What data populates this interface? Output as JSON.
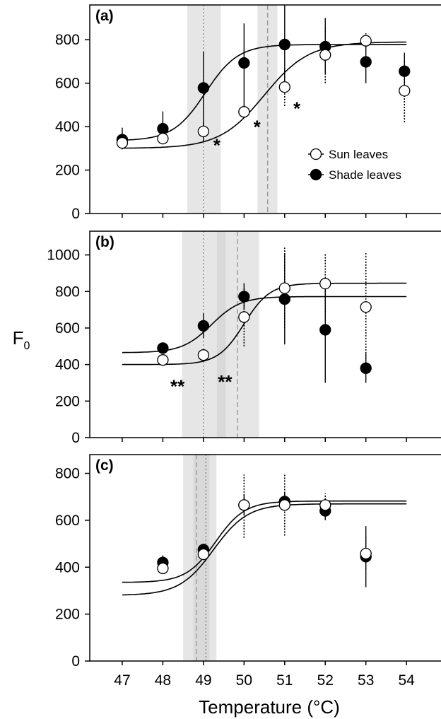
{
  "chart_data": {
    "type": "scatter",
    "xlabel": "Temperature (°C)",
    "ylabel": "F",
    "ylabel_subscript": "0",
    "x_ticks": [
      47,
      48,
      49,
      50,
      51,
      52,
      53,
      54
    ],
    "xlim": [
      46.2,
      54.85
    ],
    "legend": {
      "placement": "right",
      "entries": [
        {
          "name": "Sun leaves",
          "marker": "open-circle"
        },
        {
          "name": "Shade leaves",
          "marker": "filled-circle"
        }
      ]
    },
    "panels": [
      {
        "label": "(a)",
        "ylim": [
          0,
          960
        ],
        "y_ticks": [
          0,
          200,
          400,
          600,
          800
        ],
        "show_legend": true,
        "bands": [
          {
            "x0": 48.6,
            "x1": 49.43,
            "shade": "#e6e6e6"
          },
          {
            "x0": 50.33,
            "x1": 50.82,
            "shade": "#e6e6e6"
          }
        ],
        "vlines": [
          {
            "x": 49.0,
            "style": "dotted"
          },
          {
            "x": 50.58,
            "style": "dashed"
          }
        ],
        "series": [
          {
            "name": "Sun leaves",
            "marker": "open",
            "points": [
              {
                "x": 47,
                "y": 325,
                "lo": 300,
                "hi": 350,
                "err": "solid"
              },
              {
                "x": 48,
                "y": 345,
                "lo": 318,
                "hi": 375,
                "err": "solid"
              },
              {
                "x": 49,
                "y": 378,
                "lo": 350,
                "hi": 420,
                "err": "solid"
              },
              {
                "x": 50,
                "y": 468,
                "lo": 440,
                "hi": 500,
                "err": "solid"
              },
              {
                "x": 51,
                "y": 582,
                "lo": 495,
                "hi": 670,
                "err": "dotted"
              },
              {
                "x": 52,
                "y": 730,
                "lo": 600,
                "hi": 860,
                "err": "dotted"
              },
              {
                "x": 53,
                "y": 795,
                "lo": 760,
                "hi": 830,
                "err": "dotted"
              },
              {
                "x": 53.95,
                "y": 565,
                "lo": 420,
                "hi": 700,
                "err": "dotted"
              }
            ],
            "curve": {
              "min": 300,
              "max": 790,
              "t50": 50.5,
              "slope": 0.55
            }
          },
          {
            "name": "Shade leaves",
            "marker": "filled",
            "points": [
              {
                "x": 47,
                "y": 340,
                "lo": 295,
                "hi": 395,
                "err": "solid"
              },
              {
                "x": 48,
                "y": 390,
                "lo": 320,
                "hi": 470,
                "err": "solid"
              },
              {
                "x": 49,
                "y": 578,
                "lo": 330,
                "hi": 745,
                "err": "solid"
              },
              {
                "x": 50,
                "y": 693,
                "lo": 475,
                "hi": 875,
                "err": "solid"
              },
              {
                "x": 51,
                "y": 778,
                "lo": 560,
                "hi": 965,
                "err": "solid"
              },
              {
                "x": 52,
                "y": 768,
                "lo": 640,
                "hi": 900,
                "err": "solid"
              },
              {
                "x": 53,
                "y": 698,
                "lo": 600,
                "hi": 800,
                "err": "solid"
              },
              {
                "x": 53.95,
                "y": 655,
                "lo": 570,
                "hi": 740,
                "err": "solid"
              }
            ],
            "curve": {
              "min": 335,
              "max": 778,
              "t50": 49.05,
              "slope": 0.4
            }
          }
        ],
        "annotations": [
          {
            "text": "*",
            "x": 49.33,
            "y": 330
          },
          {
            "text": "*",
            "x": 50.32,
            "y": 415
          },
          {
            "text": "*",
            "x": 51.3,
            "y": 500
          }
        ]
      },
      {
        "label": "(b)",
        "ylim": [
          0,
          1130
        ],
        "y_ticks": [
          0,
          200,
          400,
          600,
          800,
          1000
        ],
        "show_legend": false,
        "bands": [
          {
            "x0": 48.47,
            "x1": 50.37,
            "shade": "#e6e6e6"
          },
          {
            "x0": 49.33,
            "x1": 49.55,
            "shade": "#d9d9d9"
          }
        ],
        "vlines": [
          {
            "x": 49.0,
            "style": "dotted"
          },
          {
            "x": 49.84,
            "style": "dashed"
          }
        ],
        "series": [
          {
            "name": "Sun leaves",
            "marker": "open",
            "points": [
              {
                "x": 48,
                "y": 425,
                "lo": 405,
                "hi": 445,
                "err": "solid"
              },
              {
                "x": 49,
                "y": 452,
                "lo": 430,
                "hi": 475,
                "err": "solid"
              },
              {
                "x": 50,
                "y": 660,
                "lo": 500,
                "hi": 820,
                "err": "dotted"
              },
              {
                "x": 51,
                "y": 818,
                "lo": 600,
                "hi": 1040,
                "err": "dotted"
              },
              {
                "x": 52,
                "y": 843,
                "lo": 640,
                "hi": 1010,
                "err": "dotted"
              },
              {
                "x": 53,
                "y": 715,
                "lo": 430,
                "hi": 1010,
                "err": "dotted"
              }
            ],
            "curve": {
              "min": 400,
              "max": 845,
              "t50": 50.0,
              "slope": 0.32
            }
          },
          {
            "name": "Shade leaves",
            "marker": "filled",
            "points": [
              {
                "x": 48,
                "y": 490,
                "lo": 465,
                "hi": 515,
                "err": "solid"
              },
              {
                "x": 49,
                "y": 612,
                "lo": 545,
                "hi": 680,
                "err": "solid"
              },
              {
                "x": 50,
                "y": 772,
                "lo": 700,
                "hi": 845,
                "err": "solid"
              },
              {
                "x": 51,
                "y": 758,
                "lo": 510,
                "hi": 1010,
                "err": "solid"
              },
              {
                "x": 52,
                "y": 590,
                "lo": 300,
                "hi": 880,
                "err": "solid"
              },
              {
                "x": 53,
                "y": 380,
                "lo": 300,
                "hi": 460,
                "err": "solid"
              }
            ],
            "curve": {
              "min": 465,
              "max": 772,
              "t50": 49.2,
              "slope": 0.36
            }
          }
        ],
        "annotations": [
          {
            "text": "**",
            "x": 48.36,
            "y": 300
          },
          {
            "text": "**",
            "x": 49.53,
            "y": 325
          }
        ]
      },
      {
        "label": "(c)",
        "ylim": [
          0,
          880
        ],
        "y_ticks": [
          0,
          200,
          400,
          600,
          800
        ],
        "show_legend": false,
        "bands": [
          {
            "x0": 48.5,
            "x1": 49.32,
            "shade": "#e6e6e6"
          },
          {
            "x0": 48.75,
            "x1": 49.15,
            "shade": "#d9d9d9"
          }
        ],
        "vlines": [
          {
            "x": 48.83,
            "style": "dashed"
          },
          {
            "x": 49.06,
            "style": "dotted"
          }
        ],
        "series": [
          {
            "name": "Sun leaves",
            "marker": "open",
            "points": [
              {
                "x": 48,
                "y": 395,
                "lo": 375,
                "hi": 420,
                "err": "solid"
              },
              {
                "x": 49,
                "y": 455,
                "lo": 430,
                "hi": 480,
                "err": "solid"
              },
              {
                "x": 50,
                "y": 665,
                "lo": 525,
                "hi": 795,
                "err": "dotted"
              },
              {
                "x": 51,
                "y": 665,
                "lo": 535,
                "hi": 795,
                "err": "dotted"
              },
              {
                "x": 52,
                "y": 665,
                "lo": 615,
                "hi": 715,
                "err": "dotted"
              },
              {
                "x": 53,
                "y": 458,
                "lo": 390,
                "hi": 530,
                "err": "dotted"
              }
            ],
            "curve": {
              "min": 280,
              "max": 670,
              "t50": 49.25,
              "slope": 0.42
            }
          },
          {
            "name": "Shade leaves",
            "marker": "filled",
            "points": [
              {
                "x": 48,
                "y": 420,
                "lo": 395,
                "hi": 450,
                "err": "solid"
              },
              {
                "x": 49,
                "y": 475,
                "lo": 450,
                "hi": 500,
                "err": "solid"
              },
              {
                "x": 50,
                "y": 665,
                "lo": 620,
                "hi": 710,
                "err": "solid"
              },
              {
                "x": 51,
                "y": 680,
                "lo": 640,
                "hi": 720,
                "err": "solid"
              },
              {
                "x": 52,
                "y": 640,
                "lo": 600,
                "hi": 680,
                "err": "solid"
              },
              {
                "x": 53,
                "y": 445,
                "lo": 315,
                "hi": 575,
                "err": "solid"
              }
            ],
            "curve": {
              "min": 335,
              "max": 682,
              "t50": 49.3,
              "slope": 0.36
            }
          }
        ],
        "annotations": []
      }
    ]
  }
}
